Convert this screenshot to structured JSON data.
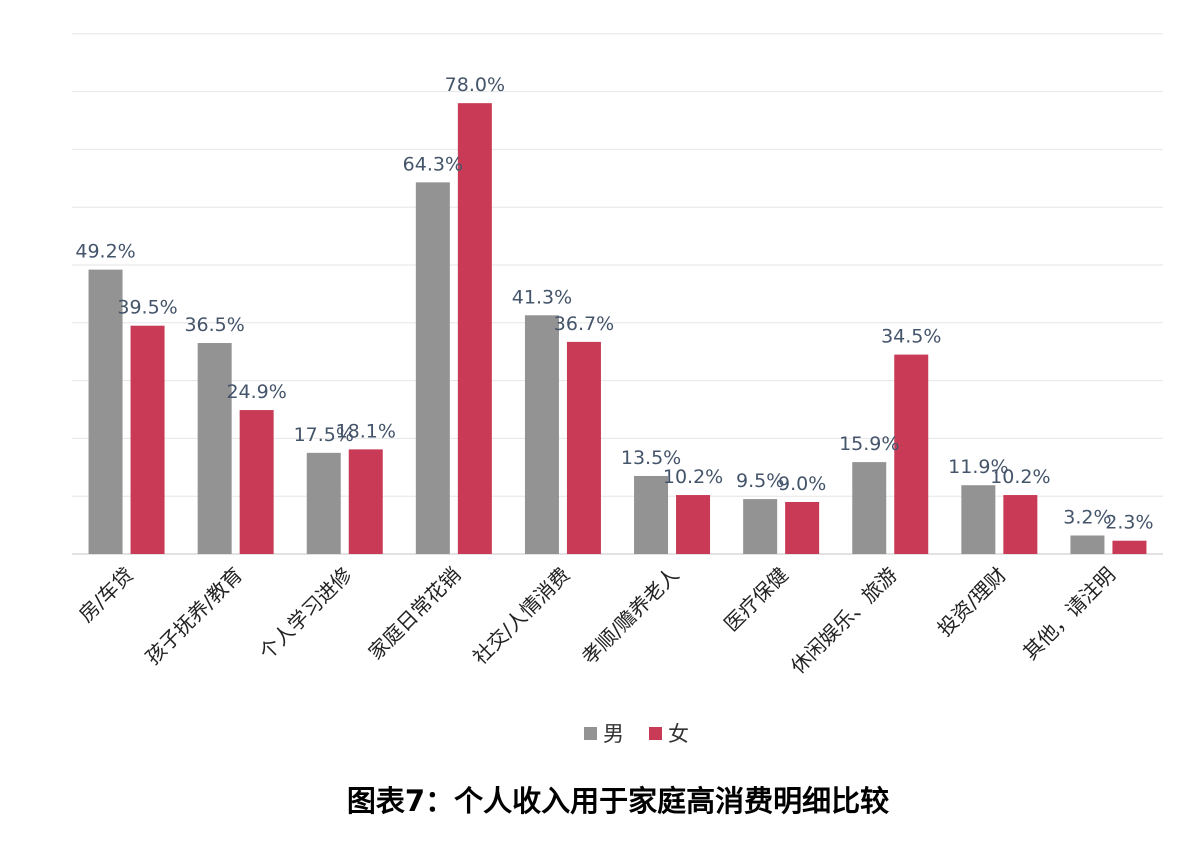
{
  "chart_data": {
    "type": "bar",
    "title": "图表7：个人收入用于家庭高消费明细比较",
    "categories": [
      "房/车贷",
      "孩子抚养/教育",
      "个人学习进修",
      "家庭日常花销",
      "社交/人情消费",
      "孝顺/赡养老人",
      "医疗保健",
      "休闲娱乐、旅游",
      "投资/理财",
      "其他，请注明"
    ],
    "series": [
      {
        "name": "男",
        "color": "#939393",
        "values": [
          49.2,
          36.5,
          17.5,
          64.3,
          41.3,
          13.5,
          9.5,
          15.9,
          11.9,
          3.2
        ]
      },
      {
        "name": "女",
        "color": "#c83a55",
        "values": [
          39.5,
          24.9,
          18.1,
          78.0,
          36.7,
          10.2,
          9.0,
          34.5,
          10.2,
          2.3
        ]
      }
    ],
    "value_labels": [
      [
        "49.2%",
        "36.5%",
        "17.5%",
        "64.3%",
        "41.3%",
        "13.5%",
        "9.5%",
        "15.9%",
        "11.9%",
        "3.2%"
      ],
      [
        "39.5%",
        "24.9%",
        "18.1%",
        "78.0%",
        "36.7%",
        "10.2%",
        "9.0%",
        "34.5%",
        "10.2%",
        "2.3%"
      ]
    ],
    "ylim": [
      0,
      90
    ],
    "grid": true,
    "legend_position": "bottom"
  }
}
